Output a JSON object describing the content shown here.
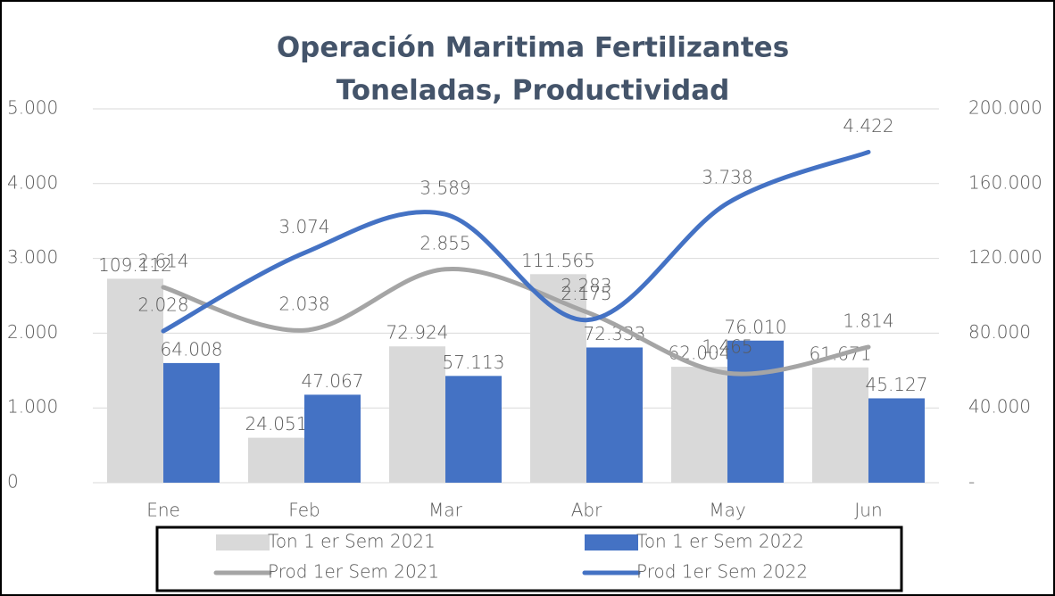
{
  "chart_data": {
    "type": "combo",
    "title": "Operación Maritima Fertilizantes",
    "subtitle": "Toneladas, Productividad",
    "categories": [
      "Ene",
      "Feb",
      "Mar",
      "Abr",
      "May",
      "Jun"
    ],
    "ylim": [
      0,
      5000
    ],
    "yticks": [
      0,
      {
        "value": 1000,
        "label": "1.000"
      },
      {
        "value": 2000,
        "label": "2.000"
      },
      {
        "value": 3000,
        "label": "3.000"
      },
      {
        "value": 4000,
        "label": "4.000"
      },
      {
        "value": 5000,
        "label": "5.000"
      }
    ],
    "y2lim": [
      0,
      200000
    ],
    "y2ticks": [
      {
        "value": 0,
        "label": "-"
      },
      {
        "value": 40000,
        "label": "40.000"
      },
      {
        "value": 80000,
        "label": "80.000"
      },
      {
        "value": 120000,
        "label": "120.000"
      },
      {
        "value": 160000,
        "label": "160.000"
      },
      {
        "value": 200000,
        "label": "200.000"
      }
    ],
    "grid": true,
    "legend": "bottom",
    "series": [
      {
        "name": "Ton 1 er Sem 2021",
        "type": "bar",
        "axis": "y2",
        "color": "#d9d9d9",
        "values": [
          109112,
          24051,
          72924,
          111565,
          62004,
          61671
        ],
        "value_labels": [
          "109.112",
          "24.051",
          "72.924",
          "111.565",
          "62.004",
          "61.671"
        ]
      },
      {
        "name": "Ton 1 er Sem 2022",
        "type": "bar",
        "axis": "y2",
        "color": "#4472c4",
        "values": [
          64008,
          47067,
          57113,
          72333,
          76010,
          45127
        ],
        "value_labels": [
          "64.008",
          "47.067",
          "57.113",
          "72.333",
          "76.010",
          "45.127"
        ]
      },
      {
        "name": "Prod 1er Sem 2021",
        "type": "line",
        "color": "#a5a5a5",
        "values": [
          2614,
          2038,
          2855,
          2283,
          1465,
          1814
        ],
        "value_labels": [
          "2.614",
          "2.038",
          "2.855",
          "2.283",
          "1.465",
          "1.814"
        ]
      },
      {
        "name": "Prod 1er Sem 2022",
        "type": "line",
        "color": "#4472c4",
        "values": [
          2028,
          3074,
          3589,
          2175,
          3738,
          4422
        ],
        "value_labels": [
          "2.028",
          "3.074",
          "3.589",
          "2.175",
          "3.738",
          "4.422"
        ]
      }
    ]
  }
}
